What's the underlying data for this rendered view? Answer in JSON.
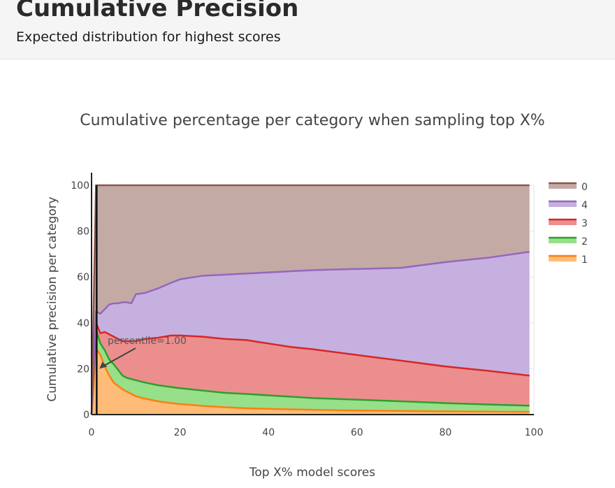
{
  "header": {
    "title": "Cumulative Precision",
    "subtitle": "Expected distribution for highest scores"
  },
  "chart_data": {
    "type": "area",
    "title": "Cumulative percentage per category when sampling top X%",
    "xlabel": "Top X% model scores",
    "ylabel": "Cumulative precision per category",
    "xlim": [
      0,
      100
    ],
    "ylim": [
      0,
      100
    ],
    "x_ticks": [
      0,
      20,
      40,
      60,
      80,
      100
    ],
    "y_ticks": [
      0,
      20,
      40,
      60,
      80,
      100
    ],
    "stacked": true,
    "grid": true,
    "legend_position": "top-right",
    "x": [
      0,
      1,
      2,
      3,
      4,
      5,
      6,
      7,
      8,
      9,
      10,
      12,
      15,
      18,
      20,
      25,
      30,
      35,
      40,
      45,
      50,
      60,
      70,
      80,
      90,
      99
    ],
    "series": [
      {
        "name": "1",
        "color": "#ff7f0e",
        "fill": "#ffbb78",
        "values": [
          0,
          29,
          26,
          21,
          17,
          14,
          12.5,
          11,
          10,
          9,
          8,
          7,
          5.8,
          5,
          4.6,
          3.8,
          3.2,
          2.8,
          2.5,
          2.3,
          2.1,
          1.8,
          1.6,
          1.4,
          1.3,
          1.2
        ]
      },
      {
        "name": "2",
        "color": "#2ca02c",
        "fill": "#98df8a",
        "values": [
          0,
          37,
          31,
          28,
          24,
          22,
          19.5,
          17,
          16,
          15.5,
          15,
          14,
          12.8,
          12,
          11.5,
          10.5,
          9.5,
          9,
          8.4,
          7.8,
          7.2,
          6.5,
          5.8,
          5,
          4.4,
          3.9
        ]
      },
      {
        "name": "3",
        "color": "#d62728",
        "fill": "#ec8e8e",
        "values": [
          0,
          40,
          35.5,
          36,
          35,
          34,
          33,
          32,
          32,
          32,
          32,
          33,
          33.5,
          34.5,
          34.5,
          34,
          33,
          32.5,
          31,
          29.5,
          28.5,
          26,
          23.5,
          21,
          19,
          17
        ]
      },
      {
        "name": "4",
        "color": "#9467bd",
        "fill": "#c6b0e0",
        "values": [
          0,
          45,
          44,
          46,
          48,
          48.5,
          48.5,
          49,
          49,
          48.5,
          52.5,
          53,
          55,
          57.5,
          59,
          60.5,
          61,
          61.5,
          62,
          62.5,
          63,
          63.5,
          64,
          66.5,
          68.5,
          71
        ]
      },
      {
        "name": "0",
        "color": "#8c564b",
        "fill": "#c4aaa5",
        "values": [
          0,
          100,
          100,
          100,
          100,
          100,
          100,
          100,
          100,
          100,
          100,
          100,
          100,
          100,
          100,
          100,
          100,
          100,
          100,
          100,
          100,
          100,
          100,
          100,
          100,
          100
        ]
      }
    ],
    "annotation": {
      "text": "percentile=1.00",
      "x": 1,
      "y": 20
    },
    "vline_x": 1
  }
}
